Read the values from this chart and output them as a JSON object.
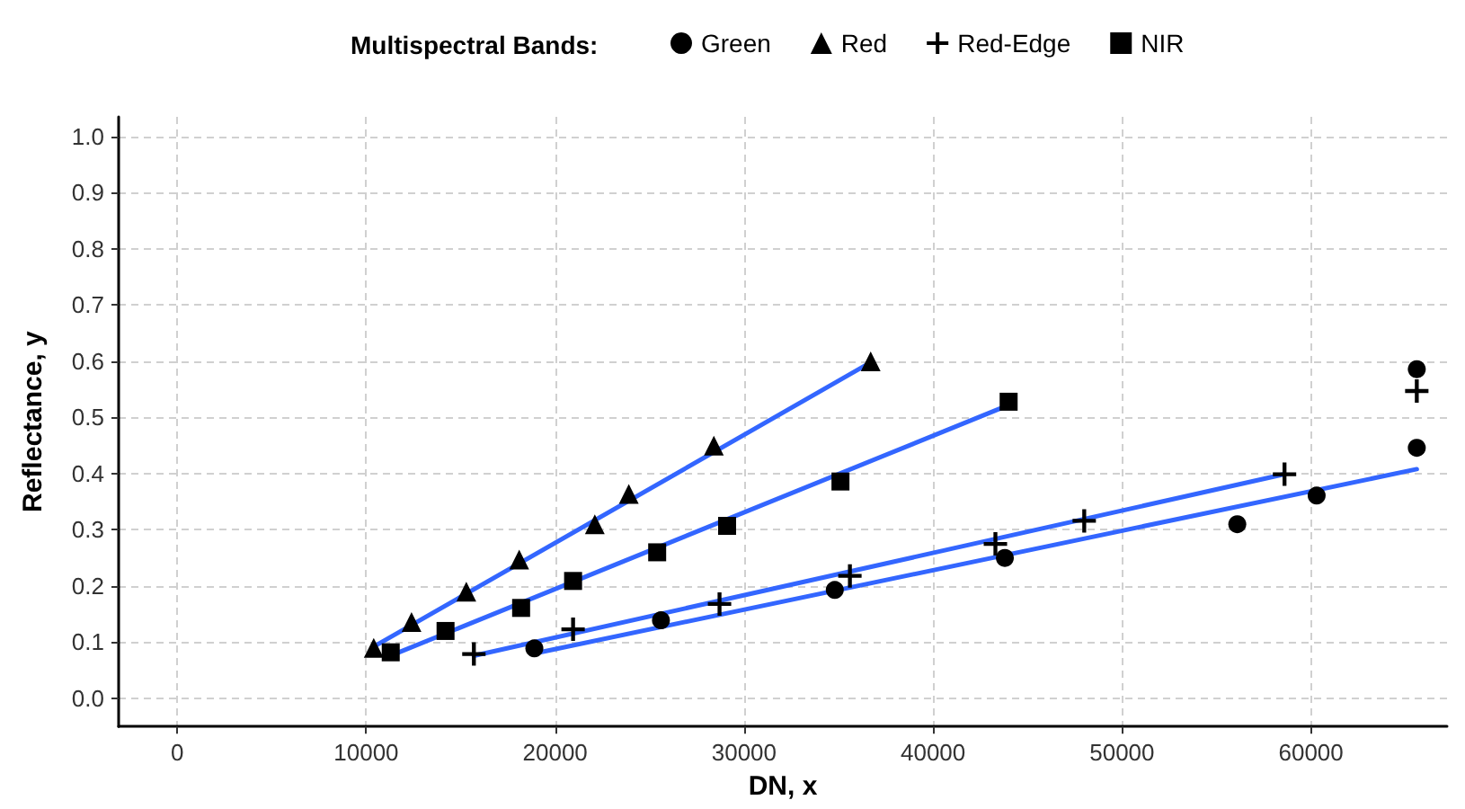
{
  "chart_data": {
    "type": "scatter",
    "xlabel": "DN, x",
    "ylabel": "Reflectance, y",
    "legend_title": "Multispectral Bands:",
    "legend": "top",
    "grid": true,
    "xlim": [
      -3100,
      67200
    ],
    "xticks": [
      0,
      10000,
      20000,
      30000,
      40000,
      50000,
      60000
    ],
    "ylim": [
      -0.05,
      1.035
    ],
    "yticks": [
      {
        "value": 0,
        "label": "0.0"
      },
      {
        "value": 0.1,
        "label": "0.1"
      },
      {
        "value": 0.2,
        "label": "0.2"
      },
      {
        "value": 0.3,
        "label": "0.3"
      },
      {
        "value": 0.4,
        "label": "0.4"
      },
      {
        "value": 0.5,
        "label": "0.5"
      },
      {
        "value": 0.6,
        "label": "0.6"
      },
      {
        "value": 0.7,
        "label": "0.7"
      },
      {
        "value": 0.8,
        "label": "0.8"
      },
      {
        "value": 0.9,
        "label": "0.9"
      },
      {
        "value": 1,
        "label": "1.0"
      }
    ],
    "series": [
      {
        "name": "Green",
        "color": "#000000",
        "marker": "circle",
        "x": [
          18900,
          25600,
          34800,
          43800,
          56100,
          60300,
          65600,
          65600
        ],
        "values": [
          0.089,
          0.139,
          0.193,
          0.25,
          0.31,
          0.361,
          0.446,
          0.586
        ]
      },
      {
        "name": "Red",
        "color": "#000000",
        "marker": "triangle",
        "x": [
          10400,
          12400,
          15300,
          18100,
          22100,
          23900,
          28400,
          36700
        ],
        "values": [
          0.09,
          0.136,
          0.19,
          0.247,
          0.31,
          0.364,
          0.45,
          0.6
        ]
      },
      {
        "name": "Red-Edge",
        "color": "#000000",
        "marker": "cross",
        "x": [
          15700,
          20950,
          28700,
          35600,
          43300,
          48000,
          58600,
          65600
        ],
        "values": [
          0.079,
          0.123,
          0.168,
          0.218,
          0.275,
          0.316,
          0.399,
          0.547
        ]
      },
      {
        "name": "NIR",
        "color": "#000000",
        "marker": "square",
        "x": [
          11300,
          14200,
          18200,
          20950,
          25400,
          29100,
          35100,
          44000
        ],
        "values": [
          0.082,
          0.12,
          0.161,
          0.209,
          0.26,
          0.307,
          0.386,
          0.528
        ]
      },
      {
        "type": "line",
        "color": "#3366ff",
        "marker": "none",
        "x": [
          18900,
          65600
        ],
        "values": [
          0.08,
          0.408
        ]
      },
      {
        "type": "line",
        "color": "#3366ff",
        "marker": "none",
        "x": [
          10400,
          36700
        ],
        "values": [
          0.092,
          0.598
        ]
      },
      {
        "type": "line",
        "color": "#3366ff",
        "marker": "none",
        "x": [
          15700,
          58600
        ],
        "values": [
          0.076,
          0.399
        ]
      },
      {
        "type": "line",
        "color": "#3366ff",
        "marker": "none",
        "x": [
          11300,
          44000
        ],
        "values": [
          0.076,
          0.522
        ]
      }
    ]
  }
}
